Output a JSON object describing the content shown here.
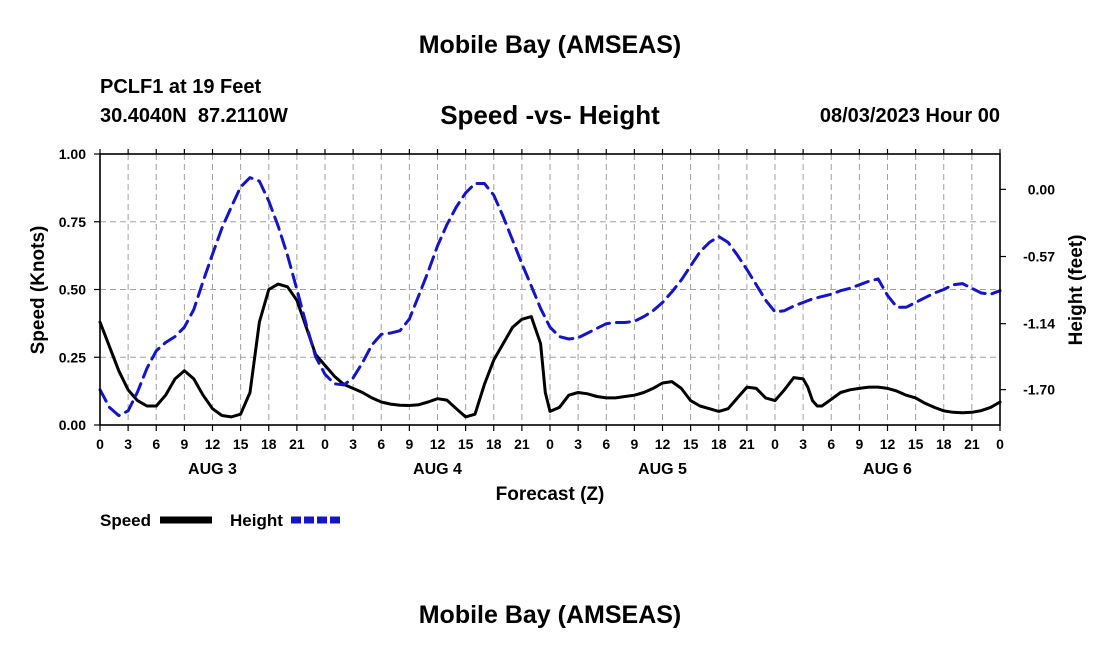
{
  "header": {
    "title": "Mobile Bay (AMSEAS)",
    "station": "PCLF1 at 19 Feet",
    "coords": "30.4040N  87.2110W",
    "date": "08/03/2023 Hour 00"
  },
  "footer": {
    "repeat_title": "Mobile Bay (AMSEAS)"
  },
  "colors": {
    "speed": "#000000",
    "height": "#1414c8",
    "grid": "#a0a0a0"
  },
  "chart_data": {
    "type": "line",
    "title": "Speed -vs- Height",
    "xlabel": "Forecast (Z)",
    "ylabel": "Speed (Knots)",
    "ylabel_right": "Height (feet)",
    "x_range_hours": [
      0,
      96
    ],
    "x_tick_step_hours": 3,
    "x_tick_labels": [
      "0",
      "3",
      "6",
      "9",
      "12",
      "15",
      "18",
      "21",
      "0",
      "3",
      "6",
      "9",
      "12",
      "15",
      "18",
      "21",
      "0",
      "3",
      "6",
      "9",
      "12",
      "15",
      "18",
      "21",
      "0",
      "3",
      "6",
      "9",
      "12",
      "15",
      "18",
      "21",
      "0"
    ],
    "day_labels": [
      {
        "label": "AUG 3",
        "hour": 12
      },
      {
        "label": "AUG 4",
        "hour": 36
      },
      {
        "label": "AUG 5",
        "hour": 60
      },
      {
        "label": "AUG 6",
        "hour": 84
      }
    ],
    "ylim": [
      0,
      1.0
    ],
    "y_ticks": [
      0,
      0.25,
      0.5,
      0.75,
      1.0
    ],
    "y_tick_labels": [
      "0.00",
      "0.25",
      "0.50",
      "0.75",
      "1.00"
    ],
    "ylim_right": [
      -2.0,
      0.3
    ],
    "y_ticks_right": [
      0.0,
      -0.57,
      -1.14,
      -1.7
    ],
    "y_tick_labels_right": [
      "0.00",
      "-0.57",
      "-1.14",
      "-1.70"
    ],
    "legend": [
      {
        "label": "Speed",
        "series": "Speed"
      },
      {
        "label": "Height",
        "series": "Height"
      }
    ],
    "series": [
      {
        "name": "Speed",
        "axis": "left",
        "style": "solid",
        "points": [
          [
            0,
            0.38
          ],
          [
            1,
            0.29
          ],
          [
            2,
            0.2
          ],
          [
            3,
            0.13
          ],
          [
            4,
            0.09
          ],
          [
            5,
            0.07
          ],
          [
            6,
            0.07
          ],
          [
            7,
            0.11
          ],
          [
            8,
            0.17
          ],
          [
            9,
            0.2
          ],
          [
            10,
            0.17
          ],
          [
            11,
            0.11
          ],
          [
            12,
            0.06
          ],
          [
            13,
            0.035
          ],
          [
            14,
            0.03
          ],
          [
            15,
            0.04
          ],
          [
            16,
            0.12
          ],
          [
            17,
            0.38
          ],
          [
            18,
            0.5
          ],
          [
            19,
            0.52
          ],
          [
            20,
            0.51
          ],
          [
            21,
            0.46
          ],
          [
            22,
            0.36
          ],
          [
            23,
            0.26
          ],
          [
            24,
            0.22
          ],
          [
            25,
            0.18
          ],
          [
            26,
            0.15
          ],
          [
            27,
            0.135
          ],
          [
            28,
            0.12
          ],
          [
            29,
            0.1
          ],
          [
            30,
            0.085
          ],
          [
            31,
            0.077
          ],
          [
            32,
            0.073
          ],
          [
            33,
            0.072
          ],
          [
            34,
            0.075
          ],
          [
            35,
            0.085
          ],
          [
            36,
            0.097
          ],
          [
            37,
            0.092
          ],
          [
            38,
            0.06
          ],
          [
            39,
            0.03
          ],
          [
            40,
            0.04
          ],
          [
            41,
            0.15
          ],
          [
            42,
            0.24
          ],
          [
            43,
            0.3
          ],
          [
            44,
            0.36
          ],
          [
            45,
            0.39
          ],
          [
            46,
            0.4
          ],
          [
            47,
            0.3
          ],
          [
            47.5,
            0.12
          ],
          [
            48,
            0.05
          ],
          [
            49,
            0.065
          ],
          [
            50,
            0.11
          ],
          [
            51,
            0.12
          ],
          [
            52,
            0.115
          ],
          [
            53,
            0.105
          ],
          [
            54,
            0.1
          ],
          [
            55,
            0.1
          ],
          [
            56,
            0.105
          ],
          [
            57,
            0.11
          ],
          [
            58,
            0.12
          ],
          [
            59,
            0.135
          ],
          [
            60,
            0.155
          ],
          [
            61,
            0.16
          ],
          [
            62,
            0.135
          ],
          [
            63,
            0.09
          ],
          [
            64,
            0.07
          ],
          [
            65,
            0.06
          ],
          [
            66,
            0.05
          ],
          [
            67,
            0.06
          ],
          [
            68,
            0.1
          ],
          [
            69,
            0.14
          ],
          [
            70,
            0.135
          ],
          [
            71,
            0.1
          ],
          [
            72,
            0.09
          ],
          [
            73,
            0.13
          ],
          [
            74,
            0.175
          ],
          [
            75,
            0.17
          ],
          [
            75.5,
            0.14
          ],
          [
            76,
            0.09
          ],
          [
            76.5,
            0.07
          ],
          [
            77,
            0.07
          ],
          [
            78,
            0.095
          ],
          [
            79,
            0.12
          ],
          [
            80,
            0.13
          ],
          [
            81,
            0.135
          ],
          [
            82,
            0.14
          ],
          [
            83,
            0.14
          ],
          [
            84,
            0.135
          ],
          [
            85,
            0.125
          ],
          [
            86,
            0.11
          ],
          [
            87,
            0.1
          ],
          [
            88,
            0.08
          ],
          [
            89,
            0.065
          ],
          [
            90,
            0.052
          ],
          [
            91,
            0.047
          ],
          [
            92,
            0.045
          ],
          [
            93,
            0.047
          ],
          [
            94,
            0.053
          ],
          [
            95,
            0.065
          ],
          [
            96,
            0.085
          ]
        ]
      },
      {
        "name": "Height",
        "axis": "right",
        "style": "dashed",
        "points": [
          [
            0,
            -1.7
          ],
          [
            1,
            -1.85
          ],
          [
            2,
            -1.92
          ],
          [
            3,
            -1.88
          ],
          [
            4,
            -1.72
          ],
          [
            5,
            -1.52
          ],
          [
            6,
            -1.37
          ],
          [
            7,
            -1.3
          ],
          [
            8,
            -1.25
          ],
          [
            9,
            -1.17
          ],
          [
            10,
            -1.02
          ],
          [
            11,
            -0.78
          ],
          [
            12,
            -0.55
          ],
          [
            13,
            -0.33
          ],
          [
            14,
            -0.15
          ],
          [
            15,
            0.02
          ],
          [
            16,
            0.1
          ],
          [
            17,
            0.07
          ],
          [
            18,
            -0.1
          ],
          [
            19,
            -0.31
          ],
          [
            20,
            -0.56
          ],
          [
            21,
            -0.85
          ],
          [
            22,
            -1.15
          ],
          [
            23,
            -1.42
          ],
          [
            24,
            -1.57
          ],
          [
            25,
            -1.65
          ],
          [
            26,
            -1.66
          ],
          [
            27,
            -1.6
          ],
          [
            28,
            -1.47
          ],
          [
            29,
            -1.32
          ],
          [
            30,
            -1.23
          ],
          [
            31,
            -1.22
          ],
          [
            32,
            -1.2
          ],
          [
            33,
            -1.1
          ],
          [
            34,
            -0.9
          ],
          [
            35,
            -0.7
          ],
          [
            36,
            -0.48
          ],
          [
            37,
            -0.3
          ],
          [
            38,
            -0.15
          ],
          [
            39,
            -0.03
          ],
          [
            40,
            0.05
          ],
          [
            41,
            0.05
          ],
          [
            42,
            -0.05
          ],
          [
            43,
            -0.23
          ],
          [
            44,
            -0.43
          ],
          [
            45,
            -0.63
          ],
          [
            46,
            -0.82
          ],
          [
            47,
            -1.01
          ],
          [
            48,
            -1.17
          ],
          [
            49,
            -1.25
          ],
          [
            50,
            -1.27
          ],
          [
            51,
            -1.26
          ],
          [
            52,
            -1.22
          ],
          [
            53,
            -1.18
          ],
          [
            54,
            -1.14
          ],
          [
            55,
            -1.13
          ],
          [
            56,
            -1.13
          ],
          [
            57,
            -1.12
          ],
          [
            58,
            -1.08
          ],
          [
            59,
            -1.03
          ],
          [
            60,
            -0.96
          ],
          [
            61,
            -0.87
          ],
          [
            62,
            -0.77
          ],
          [
            63,
            -0.65
          ],
          [
            64,
            -0.53
          ],
          [
            65,
            -0.45
          ],
          [
            66,
            -0.4
          ],
          [
            67,
            -0.45
          ],
          [
            68,
            -0.56
          ],
          [
            69,
            -0.68
          ],
          [
            70,
            -0.81
          ],
          [
            71,
            -0.94
          ],
          [
            72,
            -1.04
          ],
          [
            73,
            -1.03
          ],
          [
            74,
            -0.99
          ],
          [
            75,
            -0.96
          ],
          [
            76,
            -0.93
          ],
          [
            77,
            -0.91
          ],
          [
            78,
            -0.89
          ],
          [
            79,
            -0.86
          ],
          [
            80,
            -0.84
          ],
          [
            81,
            -0.81
          ],
          [
            82,
            -0.78
          ],
          [
            83,
            -0.76
          ],
          [
            83.5,
            -0.83
          ],
          [
            84,
            -0.9
          ],
          [
            85,
            -1.0
          ],
          [
            86,
            -1.0
          ],
          [
            87,
            -0.96
          ],
          [
            88,
            -0.92
          ],
          [
            89,
            -0.88
          ],
          [
            90,
            -0.85
          ],
          [
            91,
            -0.81
          ],
          [
            92,
            -0.8
          ],
          [
            93,
            -0.84
          ],
          [
            94,
            -0.88
          ],
          [
            95,
            -0.89
          ],
          [
            96,
            -0.86
          ]
        ]
      }
    ]
  }
}
